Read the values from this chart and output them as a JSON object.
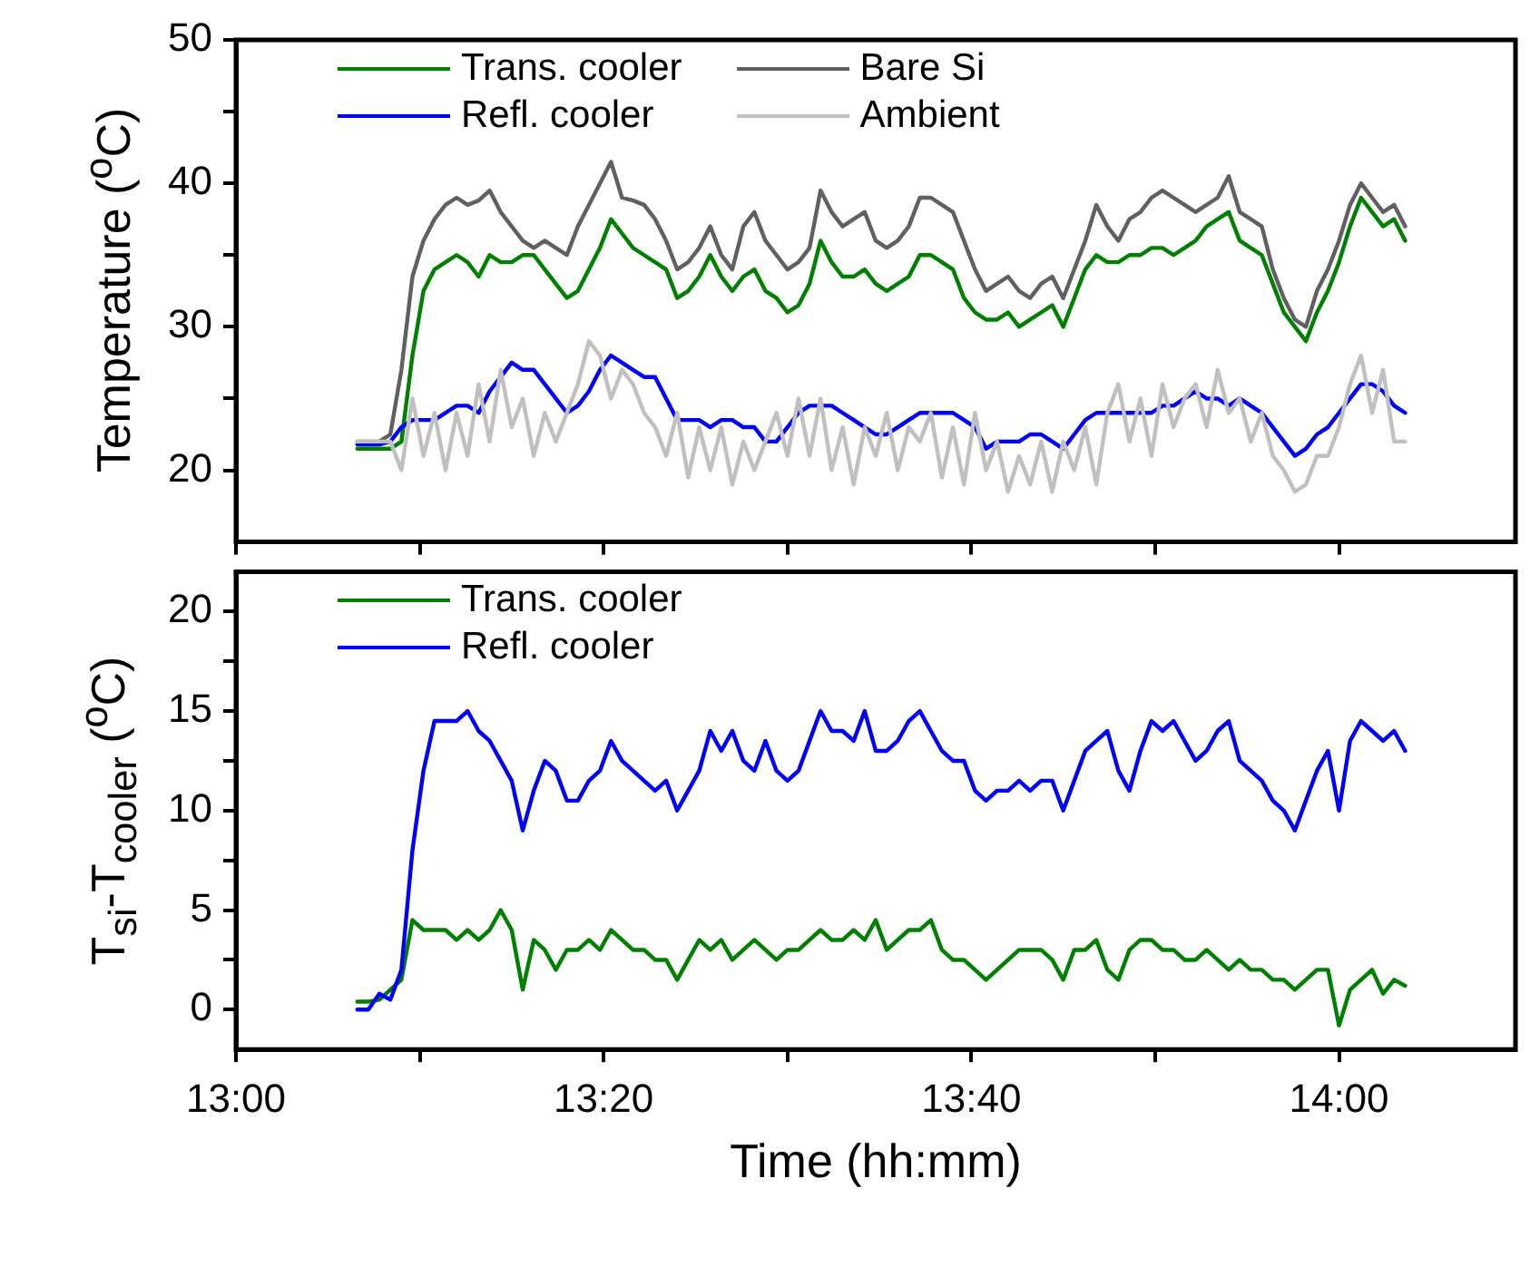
{
  "chart_data": [
    {
      "type": "line",
      "ylabel": "Temperature ($^{o}$C)",
      "xlim": [
        13,
        14.16
      ],
      "ylim": [
        15,
        50
      ],
      "xticks": [
        {
          "value": 13,
          "label": null
        },
        {
          "value": 13.1667,
          "label": null
        },
        {
          "value": 13.3333,
          "label": null
        },
        {
          "value": 13.5,
          "label": null
        },
        {
          "value": 13.6667,
          "label": null
        },
        {
          "value": 13.8333,
          "label": null
        },
        {
          "value": 14,
          "label": null
        }
      ],
      "yticks": [
        20,
        {
          "value": 25,
          "label": null
        },
        30,
        {
          "value": 35,
          "label": null
        },
        40,
        {
          "value": 45,
          "label": null
        },
        50
      ],
      "tick_labels": "y",
      "legend": "top left",
      "grid": false,
      "marker": "none",
      "line_style": "solid",
      "x": [
        13.11,
        13.12,
        13.13,
        13.14,
        13.15,
        13.16,
        13.17,
        13.18,
        13.19,
        13.2,
        13.21,
        13.22,
        13.23,
        13.24,
        13.25,
        13.26,
        13.27,
        13.28,
        13.29,
        13.3,
        13.31,
        13.32,
        13.33,
        13.34,
        13.35,
        13.36,
        13.37,
        13.38,
        13.39,
        13.4,
        13.41,
        13.42,
        13.43,
        13.44,
        13.45,
        13.46,
        13.47,
        13.48,
        13.49,
        13.5,
        13.51,
        13.52,
        13.53,
        13.54,
        13.55,
        13.56,
        13.57,
        13.58,
        13.59,
        13.6,
        13.61,
        13.62,
        13.63,
        13.64,
        13.65,
        13.66,
        13.67,
        13.68,
        13.69,
        13.7,
        13.71,
        13.72,
        13.73,
        13.74,
        13.75,
        13.76,
        13.77,
        13.78,
        13.79,
        13.8,
        13.81,
        13.82,
        13.83,
        13.84,
        13.85,
        13.86,
        13.87,
        13.88,
        13.89,
        13.9,
        13.91,
        13.92,
        13.93,
        13.94,
        13.95,
        13.96,
        13.97,
        13.98,
        13.99,
        14,
        14.01,
        14.02,
        14.03,
        14.04,
        14.05,
        14.06
      ],
      "series": [
        {
          "name": "Trans. cooler",
          "color": "#008000",
          "values": [
            21.5,
            21.5,
            21.5,
            21.5,
            22,
            28,
            32.5,
            34,
            34.5,
            35,
            34.5,
            33.5,
            35,
            34.5,
            34.5,
            35,
            35,
            34,
            33,
            32,
            32.5,
            34,
            35.5,
            37.5,
            36.5,
            35.5,
            35,
            34.5,
            34,
            32,
            32.5,
            33.5,
            35,
            33.5,
            32.5,
            33.5,
            34,
            32.5,
            32,
            31,
            31.5,
            33,
            36,
            34.5,
            33.5,
            33.5,
            34,
            33,
            32.5,
            33,
            33.5,
            35,
            35,
            34.5,
            34,
            32,
            31,
            30.5,
            30.5,
            31,
            30,
            30.5,
            31,
            31.5,
            30,
            32,
            34,
            35,
            34.5,
            34.5,
            35,
            35,
            35.5,
            35.5,
            35,
            35.5,
            36,
            37,
            37.5,
            38,
            36,
            35.5,
            35,
            33,
            31,
            30,
            29,
            31,
            32.5,
            34.5,
            37,
            39,
            38,
            37,
            37.5,
            36
          ]
        },
        {
          "name": "Refl. cooler",
          "color": "#0000ff",
          "values": [
            21.8,
            21.8,
            21.8,
            22,
            23,
            23.5,
            23.5,
            23.5,
            24,
            24.5,
            24.5,
            24,
            25.5,
            26.5,
            27.5,
            27,
            27,
            26,
            25,
            24,
            24.5,
            25.5,
            27,
            28,
            27.5,
            27,
            26.5,
            26.5,
            25,
            23.5,
            23.5,
            23.5,
            23,
            23.5,
            23.5,
            23,
            23,
            22,
            22,
            23,
            24,
            24.5,
            24.5,
            24.5,
            24,
            23.5,
            23,
            22.5,
            22.5,
            23,
            23.5,
            24,
            24,
            24,
            24,
            23.5,
            23,
            21.5,
            22,
            22,
            22,
            22.5,
            22.5,
            22,
            21.5,
            22.5,
            23.5,
            24,
            24,
            24,
            24,
            24,
            24,
            24.5,
            24.5,
            25,
            25.5,
            25,
            25,
            24.5,
            25,
            24.5,
            24,
            23,
            22,
            21,
            21.5,
            22.5,
            23,
            24,
            25,
            26,
            26,
            25.5,
            24.5,
            24
          ]
        },
        {
          "name": "Bare Si",
          "color": "#606060",
          "values": [
            22,
            22,
            22,
            22.5,
            27,
            33.5,
            36,
            37.5,
            38.5,
            39,
            38.5,
            38.8,
            39.5,
            38,
            37,
            36,
            35.5,
            36,
            35.5,
            35,
            37,
            38.5,
            40,
            41.5,
            39,
            38.8,
            38.5,
            37.5,
            36,
            34,
            34.5,
            35.5,
            37,
            35,
            34,
            37,
            38,
            36,
            35,
            34,
            34.5,
            35.5,
            39.5,
            38,
            37,
            37.5,
            38,
            36,
            35.5,
            36,
            37,
            39,
            39,
            38.5,
            38,
            36,
            34,
            32.5,
            33,
            33.5,
            32.5,
            32,
            33,
            33.5,
            32,
            34,
            36,
            38.5,
            37,
            36,
            37.5,
            38,
            39,
            39.5,
            39,
            38.5,
            38,
            38.5,
            39,
            40.5,
            38,
            37.5,
            37,
            34,
            32,
            30.5,
            30,
            32.5,
            34,
            36,
            38.5,
            40,
            39,
            38,
            38.5,
            37
          ]
        },
        {
          "name": "Ambient",
          "color": "#c0c0c0",
          "values": [
            22,
            22,
            22,
            22,
            20,
            25,
            21,
            24,
            20,
            24,
            21,
            26,
            22,
            27,
            23,
            25,
            21,
            24,
            22,
            24,
            26,
            29,
            28,
            25,
            27,
            26,
            24,
            23,
            21,
            24,
            19.5,
            23,
            20,
            23,
            19,
            22,
            20,
            22,
            24,
            21,
            25,
            21,
            25,
            20,
            23,
            19,
            23,
            21,
            24,
            20,
            23,
            22,
            24,
            19.5,
            23,
            19,
            24,
            20,
            22,
            18.5,
            21,
            19,
            22,
            18.5,
            22,
            20,
            23,
            19,
            24,
            26,
            22,
            25,
            21,
            26,
            23,
            25,
            26,
            23,
            27,
            24,
            25,
            22,
            24,
            21,
            20,
            18.5,
            19,
            21,
            21,
            23,
            26,
            28,
            24,
            27,
            22,
            22
          ]
        }
      ]
    },
    {
      "type": "line",
      "ylabel": "T$_{si}$-T$_{cooler}$ ($^{o}$C)",
      "xlabel": "Time (hh:mm)",
      "xlim": [
        13,
        14.16
      ],
      "ylim": [
        -2,
        22
      ],
      "xticks": [
        {
          "value": 13,
          "label": "13:00"
        },
        {
          "value": 13.1667,
          "label": null
        },
        {
          "value": 13.3333,
          "label": "13:20"
        },
        {
          "value": 13.5,
          "label": null
        },
        {
          "value": 13.6667,
          "label": "13:40"
        },
        {
          "value": 13.8333,
          "label": null
        },
        {
          "value": 14,
          "label": "14:00"
        }
      ],
      "yticks": [
        0,
        {
          "value": 2.5,
          "label": null
        },
        5,
        {
          "value": 7.5,
          "label": null
        },
        10,
        {
          "value": 12.5,
          "label": null
        },
        15,
        {
          "value": 17.5,
          "label": null
        },
        20
      ],
      "legend": "top left",
      "grid": false,
      "marker": "none",
      "line_style": "solid",
      "x": [
        13.11,
        13.12,
        13.13,
        13.14,
        13.15,
        13.16,
        13.17,
        13.18,
        13.19,
        13.2,
        13.21,
        13.22,
        13.23,
        13.24,
        13.25,
        13.26,
        13.27,
        13.28,
        13.29,
        13.3,
        13.31,
        13.32,
        13.33,
        13.34,
        13.35,
        13.36,
        13.37,
        13.38,
        13.39,
        13.4,
        13.41,
        13.42,
        13.43,
        13.44,
        13.45,
        13.46,
        13.47,
        13.48,
        13.49,
        13.5,
        13.51,
        13.52,
        13.53,
        13.54,
        13.55,
        13.56,
        13.57,
        13.58,
        13.59,
        13.6,
        13.61,
        13.62,
        13.63,
        13.64,
        13.65,
        13.66,
        13.67,
        13.68,
        13.69,
        13.7,
        13.71,
        13.72,
        13.73,
        13.74,
        13.75,
        13.76,
        13.77,
        13.78,
        13.79,
        13.8,
        13.81,
        13.82,
        13.83,
        13.84,
        13.85,
        13.86,
        13.87,
        13.88,
        13.89,
        13.9,
        13.91,
        13.92,
        13.93,
        13.94,
        13.95,
        13.96,
        13.97,
        13.98,
        13.99,
        14,
        14.01,
        14.02,
        14.03,
        14.04,
        14.05,
        14.06
      ],
      "series": [
        {
          "name": "Trans. cooler",
          "color": "#008000",
          "values": [
            0.4,
            0.4,
            0.5,
            1,
            1.5,
            4.5,
            4,
            4,
            4,
            3.5,
            4,
            3.5,
            4,
            5,
            4,
            1,
            3.5,
            3,
            2,
            3,
            3,
            3.5,
            3,
            4,
            3.5,
            3,
            3,
            2.5,
            2.5,
            1.5,
            2.5,
            3.5,
            3,
            3.5,
            2.5,
            3,
            3.5,
            3,
            2.5,
            3,
            3,
            3.5,
            4,
            3.5,
            3.5,
            4,
            3.5,
            4.5,
            3,
            3.5,
            4,
            4,
            4.5,
            3,
            2.5,
            2.5,
            2,
            1.5,
            2,
            2.5,
            3,
            3,
            3,
            2.5,
            1.5,
            3,
            3,
            3.5,
            2,
            1.5,
            3,
            3.5,
            3.5,
            3,
            3,
            2.5,
            2.5,
            3,
            2.5,
            2,
            2.5,
            2,
            2,
            1.5,
            1.5,
            1,
            1.5,
            2,
            2,
            -0.8,
            1,
            1.5,
            2,
            0.8,
            1.5,
            1.2
          ]
        },
        {
          "name": "Refl. cooler",
          "color": "#0000ff",
          "values": [
            0,
            0,
            0.8,
            0.5,
            2,
            8,
            12,
            14.5,
            14.5,
            14.5,
            15,
            14,
            13.5,
            12.5,
            11.5,
            9,
            11,
            12.5,
            12,
            10.5,
            10.5,
            11.5,
            12,
            13.5,
            12.5,
            12,
            11.5,
            11,
            11.5,
            10,
            11,
            12,
            14,
            13,
            14,
            12.5,
            12,
            13.5,
            12,
            11.5,
            12,
            13.5,
            15,
            14,
            14,
            13.5,
            15,
            13,
            13,
            13.5,
            14.5,
            15,
            14,
            13,
            12.5,
            12.5,
            11,
            10.5,
            11,
            11,
            11.5,
            11,
            11.5,
            11.5,
            10,
            11.5,
            13,
            13.5,
            14,
            12,
            11,
            13,
            14.5,
            14,
            14.5,
            13.5,
            12.5,
            13,
            14,
            14.5,
            12.5,
            12,
            11.5,
            10.5,
            10,
            9,
            10.5,
            12,
            13,
            10,
            13.5,
            14.5,
            14,
            13.5,
            14,
            13
          ]
        }
      ]
    }
  ]
}
